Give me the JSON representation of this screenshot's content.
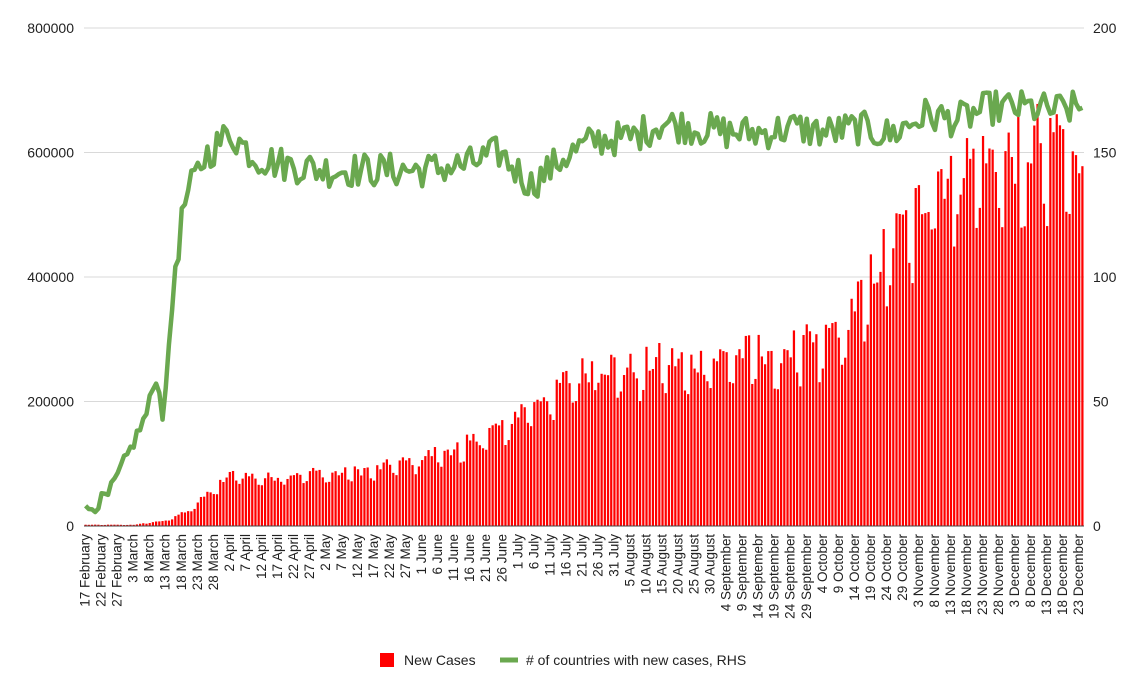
{
  "chart_data": {
    "type": "bar+line",
    "title": "",
    "left_axis": {
      "min": 0,
      "max": 800000,
      "ticks": [
        "0",
        "200000",
        "400000",
        "600000",
        "800000"
      ]
    },
    "right_axis": {
      "min": 0,
      "max": 200,
      "ticks": [
        "0",
        "50",
        "100",
        "150",
        "200"
      ]
    },
    "grid": true,
    "legend_placement": "bottom-center",
    "x_start": "2020-02-17",
    "x_end": "2020-12-24",
    "x_tick_labels": [
      "17 February",
      "22 February",
      "27 February",
      "3 March",
      "8 March",
      "13 March",
      "18 March",
      "23 March",
      "28 March",
      "2 April",
      "7 April",
      "12 April",
      "17 April",
      "22 April",
      "27 April",
      "2 May",
      "7 May",
      "12 May",
      "17 May",
      "22 May",
      "27 May",
      "1 June",
      "6 June",
      "11 June",
      "16 June",
      "21 June",
      "26 June",
      "1 July",
      "6 July",
      "11 July",
      "16 July",
      "21 July",
      "26 July",
      "31 July",
      "5 August",
      "10 August",
      "15 August",
      "20 August",
      "25 August",
      "30 August",
      "4 September",
      "9 September",
      "14 Septemebr",
      "19 September",
      "24 September",
      "29 September",
      "4 October",
      "9 October",
      "14 October",
      "19 October",
      "24 October",
      "29 October",
      "3 November",
      "8 November",
      "13 November",
      "18 November",
      "23 November",
      "28 November",
      "3 December",
      "8 December",
      "13 December",
      "18 December",
      "23 December"
    ],
    "series": [
      {
        "name": "New Cases",
        "kind": "bar",
        "axis": "left",
        "color": "#ff0000",
        "anchors": [
          [
            "2020-02-17",
            2000
          ],
          [
            "2020-03-03",
            2000
          ],
          [
            "2020-03-13",
            9000
          ],
          [
            "2020-03-21",
            28000
          ],
          [
            "2020-03-28",
            62000
          ],
          [
            "2020-04-03",
            85000
          ],
          [
            "2020-04-13",
            78000
          ],
          [
            "2020-04-25",
            88000
          ],
          [
            "2020-05-06",
            85000
          ],
          [
            "2020-05-16",
            92000
          ],
          [
            "2020-05-28",
            105000
          ],
          [
            "2020-06-06",
            120000
          ],
          [
            "2020-06-16",
            135000
          ],
          [
            "2020-06-26",
            165000
          ],
          [
            "2020-07-06",
            205000
          ],
          [
            "2020-07-16",
            235000
          ],
          [
            "2020-07-26",
            265000
          ],
          [
            "2020-08-05",
            255000
          ],
          [
            "2020-08-15",
            270000
          ],
          [
            "2020-08-25",
            265000
          ],
          [
            "2020-09-04",
            275000
          ],
          [
            "2020-09-14",
            285000
          ],
          [
            "2020-09-24",
            290000
          ],
          [
            "2020-10-04",
            300000
          ],
          [
            "2020-10-14",
            360000
          ],
          [
            "2020-10-24",
            450000
          ],
          [
            "2020-11-01",
            500000
          ],
          [
            "2020-11-08",
            570000
          ],
          [
            "2020-11-18",
            590000
          ],
          [
            "2020-11-28",
            590000
          ],
          [
            "2020-12-08",
            620000
          ],
          [
            "2020-12-17",
            640000
          ],
          [
            "2020-12-24",
            620000
          ]
        ],
        "weekly_dip": 0.2
      },
      {
        "name": "# of countries with new cases, RHS",
        "kind": "line",
        "axis": "right",
        "color": "#6aa84f",
        "anchors": [
          [
            "2020-02-17",
            6
          ],
          [
            "2020-02-24",
            12
          ],
          [
            "2020-03-01",
            28
          ],
          [
            "2020-03-07",
            45
          ],
          [
            "2020-03-10",
            60
          ],
          [
            "2020-03-12",
            45
          ],
          [
            "2020-03-14",
            70
          ],
          [
            "2020-03-16",
            105
          ],
          [
            "2020-03-19",
            130
          ],
          [
            "2020-03-25",
            148
          ],
          [
            "2020-04-02",
            158
          ],
          [
            "2020-04-10",
            148
          ],
          [
            "2020-04-20",
            145
          ],
          [
            "2020-05-01",
            143
          ],
          [
            "2020-05-15",
            143
          ],
          [
            "2020-06-01",
            143
          ],
          [
            "2020-06-15",
            145
          ],
          [
            "2020-06-25",
            150
          ],
          [
            "2020-07-05",
            137
          ],
          [
            "2020-07-15",
            148
          ],
          [
            "2020-07-25",
            155
          ],
          [
            "2020-08-05",
            156
          ],
          [
            "2020-08-15",
            162
          ],
          [
            "2020-08-25",
            160
          ],
          [
            "2020-09-05",
            158
          ],
          [
            "2020-09-15",
            158
          ],
          [
            "2020-09-25",
            160
          ],
          [
            "2020-10-05",
            158
          ],
          [
            "2020-10-15",
            160
          ],
          [
            "2020-10-25",
            157
          ],
          [
            "2020-11-05",
            165
          ],
          [
            "2020-11-15",
            163
          ],
          [
            "2020-11-25",
            168
          ],
          [
            "2020-12-05",
            168
          ],
          [
            "2020-12-15",
            167
          ],
          [
            "2020-12-24",
            168
          ]
        ]
      }
    ]
  }
}
